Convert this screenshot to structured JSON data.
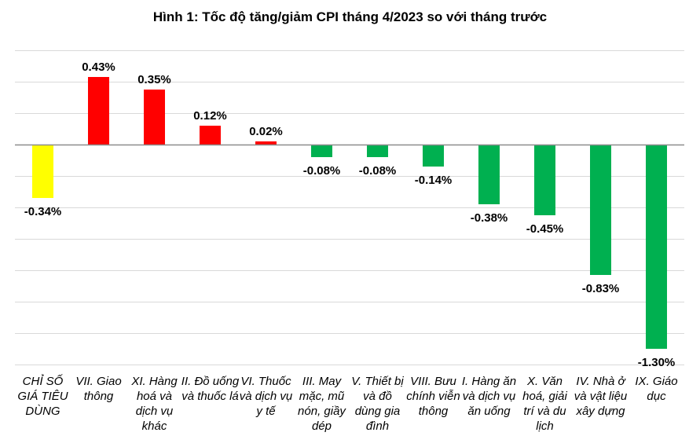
{
  "chart_data": {
    "type": "bar",
    "title": "Hình 1: Tốc độ tăng/giảm CPI tháng 4/2023 so với tháng trước",
    "xlabel": "",
    "ylabel": "",
    "ylim": [
      -1.4,
      0.6
    ],
    "grid": true,
    "unit": "%",
    "categories": [
      "CHỈ SỐ GIÁ TIÊU DÙNG",
      "VII. Giao thông",
      "XI. Hàng hoá và dịch vụ khác",
      "II. Đồ uống và thuốc lá",
      "VI. Thuốc và dịch vụ y tế",
      "III. May mặc, mũ nón, giầy dép",
      "V. Thiết bị và đồ dùng gia đình",
      "VIII. Bưu chính viễn thông",
      "I. Hàng ăn và dịch vụ ăn uống",
      "X. Văn hoá, giải trí và du lịch",
      "IV. Nhà ở và vật liệu xây dựng",
      "IX. Giáo dục"
    ],
    "values": [
      -0.34,
      0.43,
      0.35,
      0.12,
      0.02,
      -0.08,
      -0.08,
      -0.14,
      -0.38,
      -0.45,
      -0.83,
      -1.3
    ],
    "data_labels": [
      "-0.34%",
      "0.43%",
      "0.35%",
      "0.12%",
      "0.02%",
      "-0.08%",
      "-0.08%",
      "-0.14%",
      "-0.38%",
      "-0.45%",
      "-0.83%",
      "-1.30%"
    ],
    "colors": {
      "overall": "#FFFF00",
      "positive": "#FF0000",
      "negative": "#00B050",
      "grid": "#D9D9D9"
    }
  }
}
